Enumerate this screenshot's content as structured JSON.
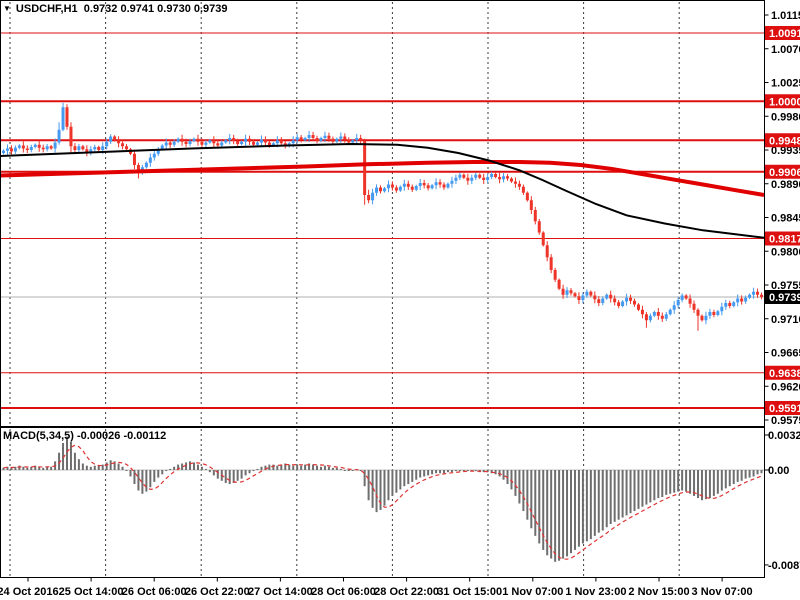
{
  "header": {
    "symbol_info": "USDCHF,H1  0.9732 0.9741 0.9730 0.9739",
    "symbol": "USDCHF",
    "timeframe": "H1",
    "ohlc": {
      "open": "0.9732",
      "high": "0.9741",
      "low": "0.9730",
      "close": "0.9739"
    }
  },
  "indicator": {
    "label": "MACD(5,34,5)",
    "values": " -0.00026 -0.00112"
  },
  "colors": {
    "background": "#ffffff",
    "candle_up": "#4499f0",
    "candle_down": "#ee3328",
    "sr_line": "#dd0f0f",
    "badge_red": "#dd0f0f",
    "badge_black": "#000000",
    "badge_text": "#ffffff",
    "ma_black": "#000000",
    "ma_red": "#e00000",
    "macd_bar": "#6e6e6e",
    "macd_signal": "#e03333",
    "macd_zero": "#c0c0c0",
    "grid": "#3a3a3a",
    "current_price_line": "#b0b0b0",
    "axis_text": "#000000",
    "frame": "#000000"
  },
  "chart_data": {
    "type": "candlestick",
    "title": "USDCHF H1 with MACD(5,34,5)",
    "ylim": [
      0.9575,
      1.0115
    ],
    "price_axis_labels": [
      "1.0115",
      "1.0070",
      "1.0025",
      "0.9980",
      "0.9935",
      "0.9890",
      "0.9845",
      "0.9800",
      "0.9755",
      "0.9710",
      "0.9665",
      "0.9620",
      "0.9575"
    ],
    "sr_lines": [
      {
        "label": "1.0091",
        "price": 1.0091,
        "width": 1
      },
      {
        "label": "1.0000",
        "price": 1.0,
        "width": 2
      },
      {
        "label": "0.9948",
        "price": 0.9948,
        "width": 2
      },
      {
        "label": "0.9906",
        "price": 0.9906,
        "width": 2
      },
      {
        "label": "0.9817",
        "price": 0.9817,
        "width": 1
      },
      {
        "label": "0.9638",
        "price": 0.9638,
        "width": 1
      },
      {
        "label": "0.9591",
        "price": 0.9591,
        "width": 2
      }
    ],
    "current_price": {
      "label": "0.9739",
      "price": 0.9739
    },
    "time_labels": [
      "24 Oct 2016",
      "25 Oct 14:00",
      "26 Oct 06:00",
      "26 Oct 22:00",
      "27 Oct 14:00",
      "28 Oct 06:00",
      "28 Oct 22:00",
      "31 Oct 15:00",
      "1 Nov 07:00",
      "1 Nov 23:00",
      "2 Nov 15:00",
      "3 Nov 07:00"
    ],
    "macd_axis_labels": [
      {
        "label": "0.00324",
        "value": 0.00324
      },
      {
        "label": "0.00",
        "value": 0
      },
      {
        "label": "-0.00879",
        "value": -0.00879
      }
    ],
    "closes": [
      0.9934,
      0.9937,
      0.9933,
      0.9938,
      0.9941,
      0.9937,
      0.9935,
      0.9939,
      0.9942,
      0.9938,
      0.9936,
      0.994,
      0.9937,
      0.9945,
      0.9962,
      0.9992,
      0.9966,
      0.994,
      0.9935,
      0.994,
      0.9936,
      0.9932,
      0.9936,
      0.9939,
      0.9935,
      0.994,
      0.9946,
      0.9953,
      0.9948,
      0.9944,
      0.994,
      0.9936,
      0.993,
      0.9915,
      0.9905,
      0.9912,
      0.9918,
      0.9925,
      0.993,
      0.9936,
      0.9941,
      0.9945,
      0.9942,
      0.9946,
      0.995,
      0.9946,
      0.9943,
      0.9947,
      0.995,
      0.9946,
      0.9942,
      0.9945,
      0.9948,
      0.9944,
      0.9941,
      0.9945,
      0.9948,
      0.9951,
      0.9947,
      0.9943,
      0.9946,
      0.995,
      0.9946,
      0.9942,
      0.9945,
      0.9949,
      0.9945,
      0.9941,
      0.9944,
      0.9948,
      0.9944,
      0.994,
      0.9944,
      0.9948,
      0.9952,
      0.9948,
      0.9951,
      0.9955,
      0.9951,
      0.9947,
      0.9951,
      0.9954,
      0.995,
      0.9946,
      0.995,
      0.9953,
      0.9949,
      0.9945,
      0.9948,
      0.9951,
      0.9947,
      0.9875,
      0.9868,
      0.9878,
      0.9885,
      0.988,
      0.9884,
      0.9889,
      0.9885,
      0.9881,
      0.9886,
      0.989,
      0.9886,
      0.9882,
      0.9887,
      0.9891,
      0.9888,
      0.9884,
      0.9888,
      0.9892,
      0.9889,
      0.9885,
      0.989,
      0.9894,
      0.9898,
      0.9902,
      0.9898,
      0.9894,
      0.9898,
      0.9902,
      0.9898,
      0.9895,
      0.9899,
      0.9903,
      0.9899,
      0.9896,
      0.99,
      0.9897,
      0.9893,
      0.989,
      0.9886,
      0.9878,
      0.9868,
      0.9855,
      0.984,
      0.9825,
      0.9808,
      0.9792,
      0.9775,
      0.9762,
      0.975,
      0.9742,
      0.9748,
      0.9744,
      0.974,
      0.9735,
      0.9741,
      0.9746,
      0.9741,
      0.9736,
      0.9731,
      0.9737,
      0.9742,
      0.9737,
      0.9732,
      0.9727,
      0.9733,
      0.9738,
      0.9734,
      0.9729,
      0.9722,
      0.9716,
      0.9708,
      0.9714,
      0.9719,
      0.9714,
      0.971,
      0.9716,
      0.9722,
      0.9728,
      0.9735,
      0.9741,
      0.9737,
      0.973,
      0.9722,
      0.9714,
      0.9708,
      0.9714,
      0.9719,
      0.9715,
      0.972,
      0.9726,
      0.9731,
      0.9727,
      0.9732,
      0.9737,
      0.9733,
      0.9738,
      0.9742,
      0.9746,
      0.9742,
      0.9739
    ],
    "ohlc_overrides": {
      "14": [
        0.9945,
        0.9972,
        0.9942,
        0.9962
      ],
      "15": [
        0.9962,
        0.9998,
        0.996,
        0.9992
      ],
      "16": [
        0.9992,
        0.9996,
        0.9962,
        0.9966
      ],
      "17": [
        0.9966,
        0.9972,
        0.9931,
        0.994
      ],
      "34": [
        0.9915,
        0.9918,
        0.9897,
        0.9905
      ],
      "91": [
        0.9947,
        0.995,
        0.9862,
        0.9875
      ],
      "92": [
        0.9875,
        0.9882,
        0.9864,
        0.9868
      ],
      "162": [
        0.9716,
        0.9719,
        0.9698,
        0.9708
      ],
      "175": [
        0.9722,
        0.9724,
        0.9694,
        0.9714
      ]
    },
    "ma_black": [
      [
        0.0,
        0.9927
      ],
      [
        0.125,
        0.9932
      ],
      [
        0.25,
        0.9937
      ],
      [
        0.375,
        0.9941
      ],
      [
        0.46,
        0.9943
      ],
      [
        0.52,
        0.9942
      ],
      [
        0.56,
        0.9938
      ],
      [
        0.6,
        0.9931
      ],
      [
        0.64,
        0.9921
      ],
      [
        0.68,
        0.9908
      ],
      [
        0.71,
        0.9895
      ],
      [
        0.74,
        0.9881
      ],
      [
        0.78,
        0.9863
      ],
      [
        0.82,
        0.9848
      ],
      [
        0.87,
        0.9837
      ],
      [
        0.92,
        0.9828
      ],
      [
        1.0,
        0.9818
      ]
    ],
    "ma_red": [
      [
        0.0,
        0.9901
      ],
      [
        0.1,
        0.9904
      ],
      [
        0.2,
        0.9907
      ],
      [
        0.3,
        0.991
      ],
      [
        0.4,
        0.9913
      ],
      [
        0.48,
        0.9916
      ],
      [
        0.56,
        0.9918
      ],
      [
        0.62,
        0.9919
      ],
      [
        0.68,
        0.9919
      ],
      [
        0.72,
        0.9918
      ],
      [
        0.76,
        0.9915
      ],
      [
        0.8,
        0.991
      ],
      [
        0.84,
        0.9903
      ],
      [
        0.88,
        0.9896
      ],
      [
        0.92,
        0.9889
      ],
      [
        0.96,
        0.9882
      ],
      [
        1.0,
        0.9875
      ]
    ],
    "macd": [
      0.0002,
      0.0003,
      0.0002,
      0.0003,
      0.0004,
      0.0003,
      0.0002,
      0.0003,
      0.0004,
      0.0003,
      0.0002,
      0.0003,
      0.0003,
      0.0008,
      0.0016,
      0.0025,
      0.0031,
      0.0026,
      0.0016,
      0.001,
      0.0006,
      0.0004,
      0.0003,
      0.0004,
      0.0004,
      0.0005,
      0.0007,
      0.0009,
      0.0008,
      0.0006,
      0.0003,
      0.0,
      -0.0006,
      -0.0013,
      -0.0019,
      -0.0022,
      -0.002,
      -0.0016,
      -0.0011,
      -0.0007,
      -0.0004,
      -0.0001,
      0.0001,
      0.0003,
      0.0005,
      0.0006,
      0.0007,
      0.0008,
      0.0007,
      0.0005,
      0.0003,
      0.0001,
      -0.0002,
      -0.0005,
      -0.0008,
      -0.001,
      -0.0012,
      -0.0013,
      -0.0012,
      -0.001,
      -0.0008,
      -0.0005,
      -0.0003,
      -0.0001,
      0.0001,
      0.0003,
      0.0004,
      0.0005,
      0.0005,
      0.0004,
      0.0005,
      0.0006,
      0.0005,
      0.0004,
      0.0005,
      0.0004,
      0.0005,
      0.0006,
      0.0005,
      0.0004,
      0.0003,
      0.0004,
      0.0003,
      0.0002,
      0.0002,
      0.0001,
      0.0,
      -0.0001,
      0.0,
      0.0001,
      -0.0001,
      -0.0015,
      -0.0028,
      -0.0035,
      -0.0039,
      -0.0037,
      -0.0033,
      -0.0028,
      -0.0024,
      -0.0021,
      -0.0018,
      -0.0015,
      -0.0013,
      -0.0011,
      -0.0009,
      -0.0007,
      -0.0006,
      -0.0005,
      -0.0004,
      -0.0003,
      -0.0003,
      -0.0003,
      -0.0002,
      -0.0002,
      -0.0001,
      -0.0001,
      -0.0001,
      -0.0001,
      -0.0001,
      -0.0001,
      -0.0002,
      -0.0002,
      -0.0002,
      -0.0003,
      -0.0004,
      -0.0006,
      -0.0009,
      -0.0013,
      -0.0018,
      -0.0024,
      -0.0031,
      -0.0038,
      -0.0046,
      -0.0054,
      -0.0061,
      -0.0068,
      -0.0074,
      -0.0079,
      -0.0082,
      -0.0085,
      -0.0084,
      -0.0082,
      -0.008,
      -0.0077,
      -0.0074,
      -0.0071,
      -0.0068,
      -0.0066,
      -0.0064,
      -0.0061,
      -0.0058,
      -0.0056,
      -0.0053,
      -0.005,
      -0.0048,
      -0.0046,
      -0.0044,
      -0.0042,
      -0.004,
      -0.0038,
      -0.0036,
      -0.0034,
      -0.0032,
      -0.003,
      -0.0028,
      -0.0026,
      -0.0025,
      -0.0023,
      -0.0022,
      -0.0021,
      -0.002,
      -0.0019,
      -0.002,
      -0.0022,
      -0.0024,
      -0.0026,
      -0.0028,
      -0.0027,
      -0.0026,
      -0.0024,
      -0.0022,
      -0.0019,
      -0.0017,
      -0.0015,
      -0.0013,
      -0.0011,
      -0.001,
      -0.0008,
      -0.0007,
      -0.0006,
      -0.0004,
      -0.0003
    ]
  }
}
